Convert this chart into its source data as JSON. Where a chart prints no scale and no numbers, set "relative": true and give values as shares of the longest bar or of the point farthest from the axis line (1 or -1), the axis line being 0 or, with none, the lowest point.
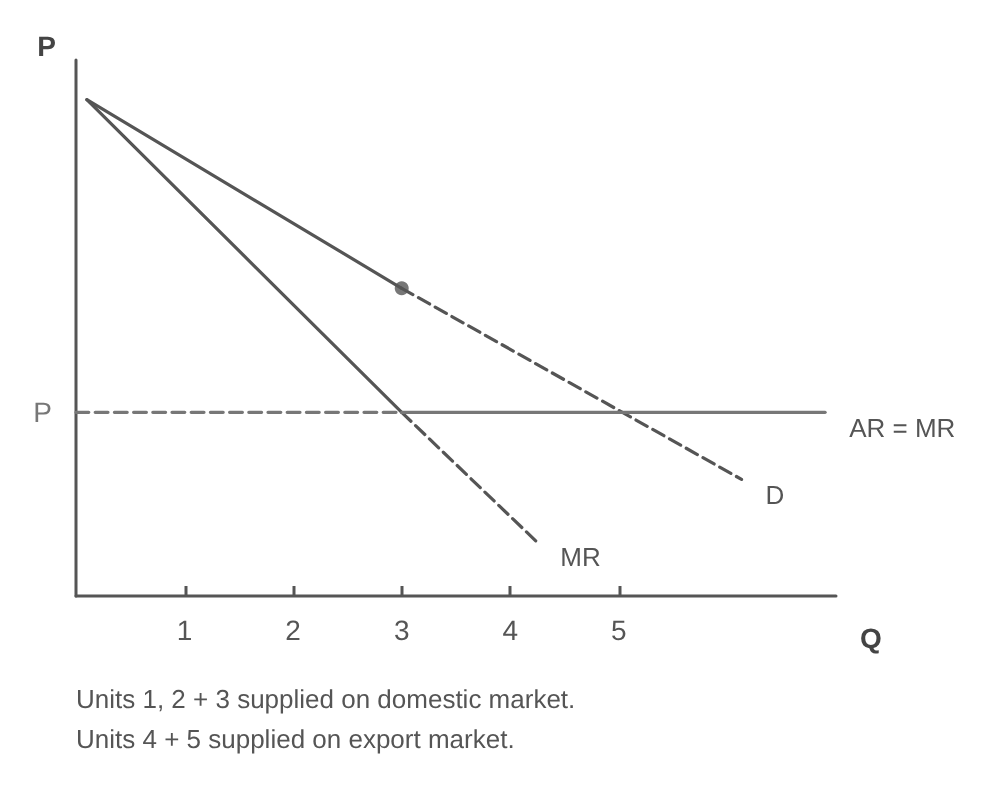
{
  "chart_data": {
    "type": "line",
    "relative": true,
    "xlabel": "Q",
    "ylabel": "P",
    "xlim": [
      0,
      7
    ],
    "xticks": [
      1,
      2,
      3,
      4,
      5
    ],
    "series": [
      {
        "color": "#555555",
        "line_style": "solid",
        "x": [
          0.1,
          3
        ],
        "values": [
          1,
          0.62
        ]
      },
      {
        "name": "D",
        "color": "#555555",
        "line_style": "dashed",
        "x": [
          3,
          6.13
        ],
        "values": [
          0.62,
          0.235
        ]
      },
      {
        "color": "#555555",
        "line_style": "solid",
        "x": [
          0.1,
          3
        ],
        "values": [
          1,
          0.37
        ]
      },
      {
        "name": "MR",
        "color": "#555555",
        "line_style": "dashed",
        "x": [
          3,
          4.24
        ],
        "values": [
          0.37,
          0.11
        ]
      },
      {
        "color": "#777777",
        "line_style": "dashed",
        "x": [
          0,
          3
        ],
        "values": [
          0.37,
          0.37
        ]
      },
      {
        "name": "AR = MR",
        "color": "#777777",
        "line_style": "solid",
        "x": [
          3,
          6.9
        ],
        "values": [
          0.37,
          0.37
        ]
      },
      {
        "type": "scatter",
        "marker": "circle",
        "color": "#555555",
        "x": [
          3
        ],
        "values": [
          0.62
        ]
      }
    ],
    "annotations": [
      {
        "text": "P",
        "x": 0,
        "y": 0.37
      },
      "Units 1, 2 + 3 supplied on domestic market.",
      "Units 4 + 5 supplied on export market."
    ]
  }
}
